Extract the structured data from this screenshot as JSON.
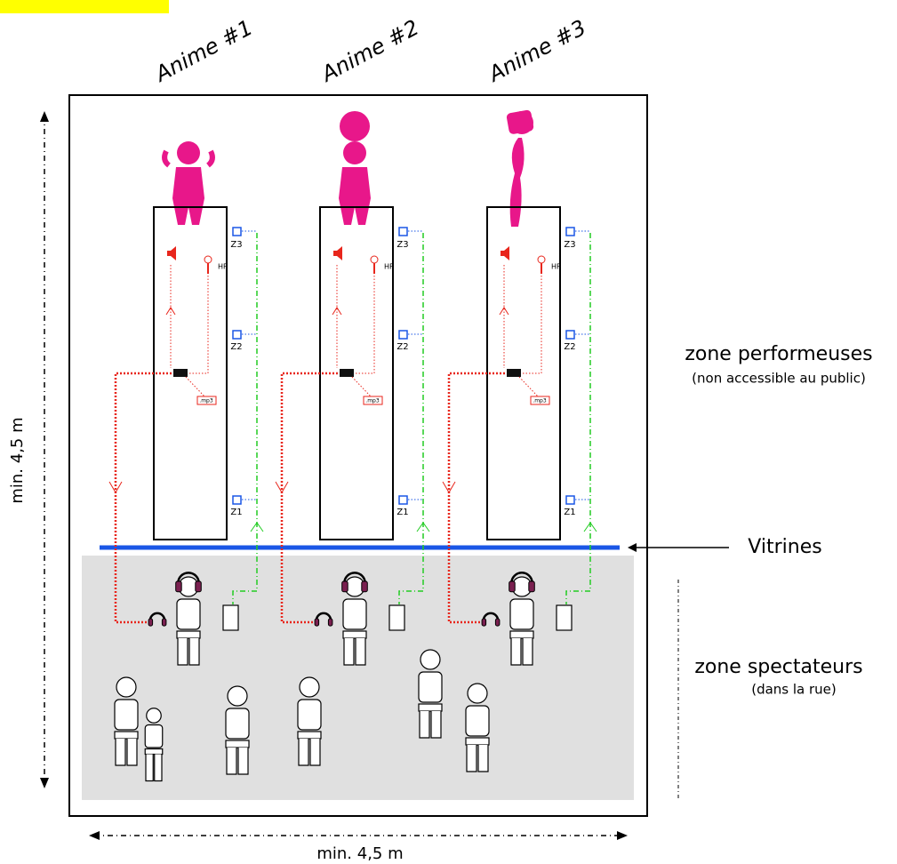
{
  "performers": [
    {
      "label": "Anime #1",
      "zones": [
        "Z3",
        "Z2",
        "Z1"
      ],
      "mic": "HF",
      "file": ".mp3"
    },
    {
      "label": "Anime #2",
      "zones": [
        "Z3",
        "Z2",
        "Z1"
      ],
      "mic": "HF",
      "file": ".mp3"
    },
    {
      "label": "Anime #3",
      "zones": [
        "Z3",
        "Z2",
        "Z1"
      ],
      "mic": "HF",
      "file": ".mp3"
    }
  ],
  "zones": {
    "performers": {
      "title": "zone performeuses",
      "note": "(non accessible au public)"
    },
    "spectators": {
      "title": "zone spectateurs",
      "note": "(dans la rue)"
    }
  },
  "window": "Vitrines",
  "dimensions": {
    "depth": "min. 4,5 m",
    "width": "min. 4,5 m"
  }
}
